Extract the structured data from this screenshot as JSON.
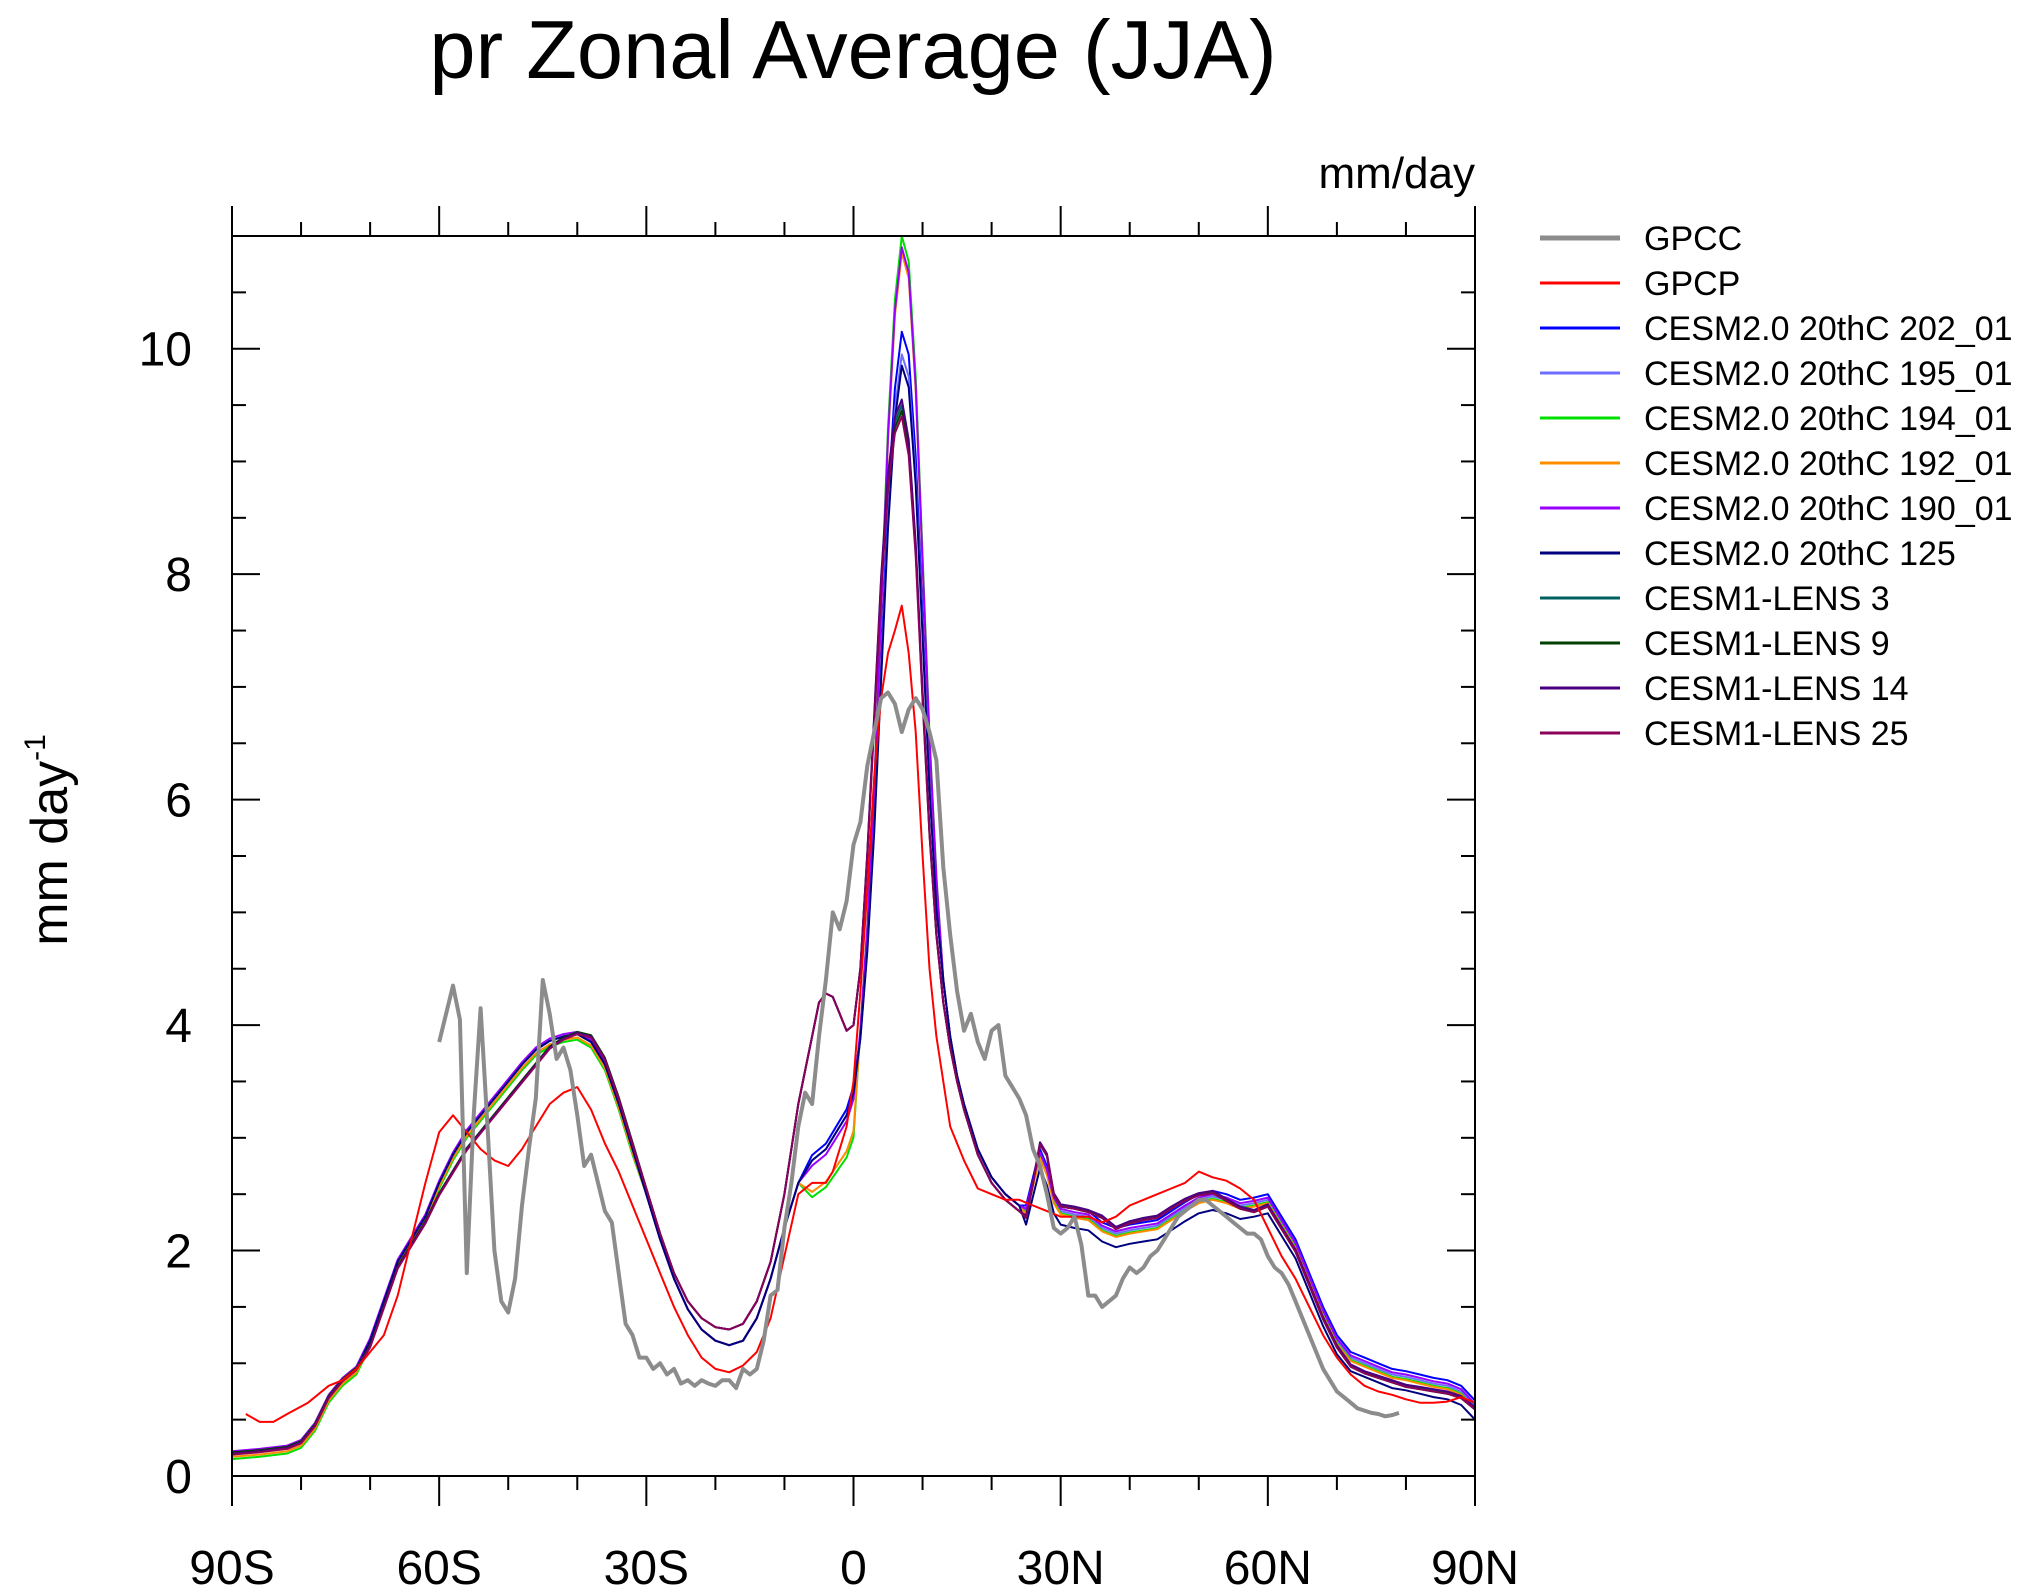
{
  "chart_data": {
    "type": "line",
    "title": "pr Zonal Average (JJA)",
    "units_label": "mm/day",
    "ylabel": "mm day",
    "ylabel_superscript": "-1",
    "xlim": [
      -90,
      90
    ],
    "ylim": [
      0,
      11
    ],
    "yticks": [
      0,
      2,
      4,
      6,
      8,
      10
    ],
    "xticks": [
      {
        "value": -90,
        "label": "90S"
      },
      {
        "value": -60,
        "label": "60S"
      },
      {
        "value": -30,
        "label": "30S"
      },
      {
        "value": 0,
        "label": "0"
      },
      {
        "value": 30,
        "label": "30N"
      },
      {
        "value": 60,
        "label": "60N"
      },
      {
        "value": 90,
        "label": "90N"
      }
    ],
    "grid": false,
    "legend_position": "right",
    "series": [
      {
        "name": "GPCC",
        "color": "#8c8c8c",
        "width": 4,
        "points": [
          [
            -60,
            3.85
          ],
          [
            -58,
            4.35
          ],
          [
            -57,
            4.05
          ],
          [
            -56,
            1.8
          ],
          [
            -55,
            3.2
          ],
          [
            -54,
            4.15
          ],
          [
            -53,
            3.1
          ],
          [
            -52,
            2.0
          ],
          [
            -51,
            1.55
          ],
          [
            -50,
            1.45
          ],
          [
            -49,
            1.75
          ],
          [
            -48,
            2.4
          ],
          [
            -47,
            2.9
          ],
          [
            -46,
            3.35
          ],
          [
            -45,
            4.4
          ],
          [
            -44,
            4.1
          ],
          [
            -43,
            3.7
          ],
          [
            -42,
            3.8
          ],
          [
            -41,
            3.6
          ],
          [
            -40,
            3.2
          ],
          [
            -39,
            2.75
          ],
          [
            -38,
            2.85
          ],
          [
            -37,
            2.6
          ],
          [
            -36,
            2.35
          ],
          [
            -35,
            2.25
          ],
          [
            -34,
            1.8
          ],
          [
            -33,
            1.35
          ],
          [
            -32,
            1.25
          ],
          [
            -31,
            1.05
          ],
          [
            -30,
            1.05
          ],
          [
            -29,
            0.95
          ],
          [
            -28,
            1.0
          ],
          [
            -27,
            0.9
          ],
          [
            -26,
            0.95
          ],
          [
            -25,
            0.82
          ],
          [
            -24,
            0.85
          ],
          [
            -23,
            0.8
          ],
          [
            -22,
            0.85
          ],
          [
            -21,
            0.82
          ],
          [
            -20,
            0.8
          ],
          [
            -19,
            0.85
          ],
          [
            -18,
            0.85
          ],
          [
            -17,
            0.78
          ],
          [
            -16,
            0.95
          ],
          [
            -15,
            0.9
          ],
          [
            -14,
            0.95
          ],
          [
            -13,
            1.2
          ],
          [
            -12,
            1.6
          ],
          [
            -11,
            1.65
          ],
          [
            -10,
            2.2
          ],
          [
            -9,
            2.6
          ],
          [
            -8,
            3.1
          ],
          [
            -7,
            3.4
          ],
          [
            -6,
            3.3
          ],
          [
            -5,
            3.9
          ],
          [
            -4,
            4.4
          ],
          [
            -3,
            5.0
          ],
          [
            -2,
            4.85
          ],
          [
            -1,
            5.1
          ],
          [
            0,
            5.6
          ],
          [
            1,
            5.8
          ],
          [
            2,
            6.3
          ],
          [
            3,
            6.6
          ],
          [
            4,
            6.9
          ],
          [
            5,
            6.95
          ],
          [
            6,
            6.85
          ],
          [
            7,
            6.6
          ],
          [
            8,
            6.8
          ],
          [
            9,
            6.9
          ],
          [
            10,
            6.8
          ],
          [
            11,
            6.6
          ],
          [
            12,
            6.35
          ],
          [
            13,
            5.4
          ],
          [
            14,
            4.8
          ],
          [
            15,
            4.3
          ],
          [
            16,
            3.95
          ],
          [
            17,
            4.1
          ],
          [
            18,
            3.85
          ],
          [
            19,
            3.7
          ],
          [
            20,
            3.95
          ],
          [
            21,
            4.0
          ],
          [
            22,
            3.55
          ],
          [
            23,
            3.45
          ],
          [
            24,
            3.35
          ],
          [
            25,
            3.2
          ],
          [
            26,
            2.9
          ],
          [
            27,
            2.75
          ],
          [
            28,
            2.5
          ],
          [
            29,
            2.2
          ],
          [
            30,
            2.15
          ],
          [
            31,
            2.2
          ],
          [
            32,
            2.3
          ],
          [
            33,
            2.05
          ],
          [
            34,
            1.6
          ],
          [
            35,
            1.6
          ],
          [
            36,
            1.5
          ],
          [
            37,
            1.55
          ],
          [
            38,
            1.6
          ],
          [
            39,
            1.75
          ],
          [
            40,
            1.85
          ],
          [
            41,
            1.8
          ],
          [
            42,
            1.85
          ],
          [
            43,
            1.95
          ],
          [
            44,
            2.0
          ],
          [
            45,
            2.1
          ],
          [
            46,
            2.2
          ],
          [
            47,
            2.3
          ],
          [
            48,
            2.35
          ],
          [
            49,
            2.4
          ],
          [
            50,
            2.45
          ],
          [
            51,
            2.45
          ],
          [
            52,
            2.4
          ],
          [
            53,
            2.35
          ],
          [
            54,
            2.3
          ],
          [
            55,
            2.25
          ],
          [
            56,
            2.2
          ],
          [
            57,
            2.15
          ],
          [
            58,
            2.15
          ],
          [
            59,
            2.1
          ],
          [
            60,
            1.95
          ],
          [
            61,
            1.85
          ],
          [
            62,
            1.8
          ],
          [
            63,
            1.7
          ],
          [
            64,
            1.55
          ],
          [
            65,
            1.4
          ],
          [
            66,
            1.25
          ],
          [
            67,
            1.1
          ],
          [
            68,
            0.95
          ],
          [
            69,
            0.85
          ],
          [
            70,
            0.75
          ],
          [
            71,
            0.7
          ],
          [
            72,
            0.65
          ],
          [
            73,
            0.6
          ],
          [
            74,
            0.58
          ],
          [
            75,
            0.56
          ],
          [
            76,
            0.55
          ],
          [
            77,
            0.53
          ],
          [
            78,
            0.54
          ],
          [
            79,
            0.56
          ]
        ]
      },
      {
        "name": "GPCP",
        "color": "#ff0000",
        "width": 2,
        "points": [
          [
            -88,
            0.55
          ],
          [
            -86,
            0.48
          ],
          [
            -84,
            0.48
          ],
          [
            -82,
            0.55
          ],
          [
            -79,
            0.65
          ],
          [
            -76,
            0.8
          ],
          [
            -74,
            0.85
          ],
          [
            -72,
            0.95
          ],
          [
            -70,
            1.1
          ],
          [
            -68,
            1.25
          ],
          [
            -66,
            1.6
          ],
          [
            -64,
            2.1
          ],
          [
            -62,
            2.6
          ],
          [
            -60,
            3.05
          ],
          [
            -58,
            3.2
          ],
          [
            -56,
            3.05
          ],
          [
            -54,
            2.9
          ],
          [
            -52,
            2.8
          ],
          [
            -50,
            2.75
          ],
          [
            -48,
            2.9
          ],
          [
            -46,
            3.1
          ],
          [
            -44,
            3.3
          ],
          [
            -42,
            3.4
          ],
          [
            -40,
            3.45
          ],
          [
            -38,
            3.25
          ],
          [
            -36,
            2.95
          ],
          [
            -34,
            2.7
          ],
          [
            -32,
            2.4
          ],
          [
            -30,
            2.1
          ],
          [
            -28,
            1.8
          ],
          [
            -26,
            1.5
          ],
          [
            -24,
            1.25
          ],
          [
            -22,
            1.05
          ],
          [
            -20,
            0.95
          ],
          [
            -18,
            0.92
          ],
          [
            -16,
            0.98
          ],
          [
            -14,
            1.1
          ],
          [
            -12,
            1.4
          ],
          [
            -10,
            1.95
          ],
          [
            -8,
            2.5
          ],
          [
            -6,
            2.6
          ],
          [
            -4,
            2.6
          ],
          [
            -3,
            2.7
          ],
          [
            -2,
            2.9
          ],
          [
            -1,
            3.1
          ],
          [
            0,
            3.5
          ],
          [
            1,
            4.3
          ],
          [
            2,
            5.2
          ],
          [
            3,
            6.2
          ],
          [
            4,
            6.9
          ],
          [
            5,
            7.3
          ],
          [
            6,
            7.5
          ],
          [
            7,
            7.72
          ],
          [
            8,
            7.3
          ],
          [
            9,
            6.6
          ],
          [
            10,
            5.5
          ],
          [
            11,
            4.5
          ],
          [
            12,
            3.9
          ],
          [
            13,
            3.5
          ],
          [
            14,
            3.1
          ],
          [
            16,
            2.8
          ],
          [
            18,
            2.55
          ],
          [
            20,
            2.5
          ],
          [
            22,
            2.45
          ],
          [
            24,
            2.45
          ],
          [
            26,
            2.4
          ],
          [
            28,
            2.35
          ],
          [
            30,
            2.3
          ],
          [
            32,
            2.3
          ],
          [
            34,
            2.3
          ],
          [
            36,
            2.25
          ],
          [
            38,
            2.3
          ],
          [
            40,
            2.4
          ],
          [
            42,
            2.45
          ],
          [
            44,
            2.5
          ],
          [
            46,
            2.55
          ],
          [
            48,
            2.6
          ],
          [
            50,
            2.7
          ],
          [
            52,
            2.65
          ],
          [
            54,
            2.62
          ],
          [
            56,
            2.55
          ],
          [
            58,
            2.45
          ],
          [
            60,
            2.2
          ],
          [
            62,
            1.95
          ],
          [
            64,
            1.75
          ],
          [
            66,
            1.5
          ],
          [
            68,
            1.25
          ],
          [
            70,
            1.05
          ],
          [
            72,
            0.9
          ],
          [
            74,
            0.8
          ],
          [
            76,
            0.75
          ],
          [
            78,
            0.72
          ],
          [
            80,
            0.68
          ],
          [
            82,
            0.65
          ],
          [
            84,
            0.65
          ],
          [
            86,
            0.66
          ],
          [
            88,
            0.7
          ],
          [
            90,
            0.65
          ]
        ]
      },
      {
        "name": "CESM2.0 20thC 202_01",
        "color": "#0000ff",
        "width": 2,
        "shape": "model",
        "peak": 10.15,
        "ebump": 3.05,
        "north": 0.05,
        "south": 0.0
      },
      {
        "name": "CESM2.0 20thC 195_01",
        "color": "#6f6fff",
        "width": 2,
        "shape": "model",
        "peak": 9.95,
        "ebump": 3.0,
        "north": 0.0,
        "south": 0.0
      },
      {
        "name": "CESM2.0 20thC 194_01",
        "color": "#00e000",
        "width": 2,
        "shape": "model",
        "peak": 11.0,
        "ebump": 2.65,
        "north": -0.02,
        "south": -0.05
      },
      {
        "name": "CESM2.0 20thC 192_01",
        "color": "#ff8c00",
        "width": 2,
        "shape": "model",
        "peak": 10.85,
        "ebump": 2.7,
        "north": -0.03,
        "south": -0.03
      },
      {
        "name": "CESM2.0 20thC 190_01",
        "color": "#9900ff",
        "width": 2,
        "shape": "model",
        "peak": 10.9,
        "ebump": 2.95,
        "north": 0.02,
        "south": 0.02
      },
      {
        "name": "CESM2.0 20thC 125",
        "color": "#00007f",
        "width": 2,
        "shape": "model",
        "peak": 9.85,
        "ebump": 3.0,
        "north": -0.12,
        "south": 0.0
      },
      {
        "name": "CESM1-LENS 3",
        "color": "#006060",
        "width": 2,
        "shape": "lens",
        "peak": 9.5,
        "north": 0.0,
        "south": 0.0
      },
      {
        "name": "CESM1-LENS 9",
        "color": "#004000",
        "width": 2,
        "shape": "lens",
        "peak": 9.45,
        "north": -0.01,
        "south": 0.01
      },
      {
        "name": "CESM1-LENS 14",
        "color": "#4b0082",
        "width": 2,
        "shape": "lens",
        "peak": 9.55,
        "north": 0.01,
        "south": 0.0
      },
      {
        "name": "CESM1-LENS 25",
        "color": "#8b005a",
        "width": 2,
        "shape": "lens",
        "peak": 9.4,
        "north": -0.01,
        "south": -0.01
      }
    ]
  }
}
